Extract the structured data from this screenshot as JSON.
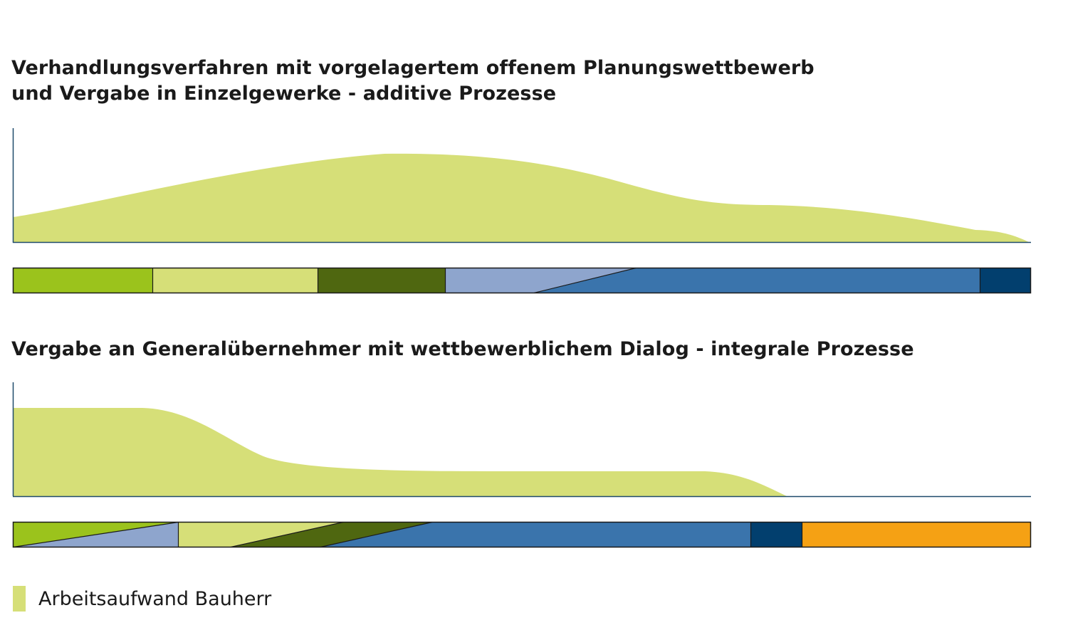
{
  "colors": {
    "effort_area": "#d6df78",
    "axis": "#1f4a6b",
    "lime": "#9bc31c",
    "light_green": "#d6df78",
    "dark_green": "#4f6710",
    "light_blue": "#8ea5cd",
    "mid_blue": "#3a74ac",
    "navy": "#023f6e",
    "orange": "#f5a114",
    "border": "#1a1a1a"
  },
  "diagram1": {
    "title_line1": "Verhandlungsverfahren mit vorgelagertem offenem Planungswettbewerb",
    "title_line2": "und Vergabe in Einzelgewerke - additive Prozesse"
  },
  "diagram2": {
    "title": "Vergabe an Generalübernehmer mit wettbewerblichem Dialog - integrale Prozesse"
  },
  "legend": {
    "label": "Arbeitsaufwand Bauherr",
    "icon": "legend-swatch-light-green"
  }
}
